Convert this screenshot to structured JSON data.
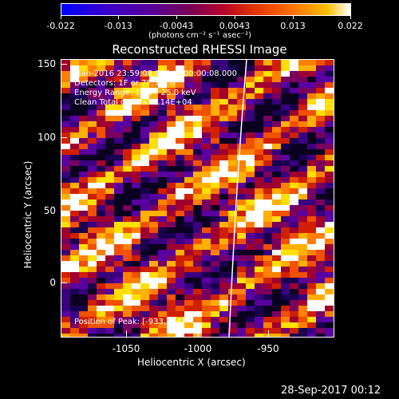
{
  "colorbar": {
    "ticks": [
      "-0.022",
      "-0.013",
      "-0.0043",
      "0.0043",
      "0.013",
      "0.022"
    ],
    "units": "(photons cm⁻² s⁻¹ asec⁻²)"
  },
  "plot": {
    "title": "Reconstructed RHESSI Image",
    "xlabel": "Heliocentric X (arcsec)",
    "ylabel": "Heliocentric Y (arcsec)",
    "annotations": {
      "time": "5-Jan-2016 23:59:08.000 to 00:00:08.000",
      "detectors": "Detectors: 1F or 7F, Att 0",
      "energy": "Energy Range: 12.0 - 25.0 keV",
      "method": "Clean    Total counts: 1.14E+04",
      "peak": "Position of Peak: [-933,104]"
    },
    "xticks": [
      "-1050",
      "-1000",
      "-950"
    ],
    "yticks": [
      "150",
      "100",
      "50",
      "0"
    ]
  },
  "timestamp": "28-Sep-2017 00:12",
  "colors": {
    "limb_line": "#ffffff",
    "background": "#000000"
  }
}
